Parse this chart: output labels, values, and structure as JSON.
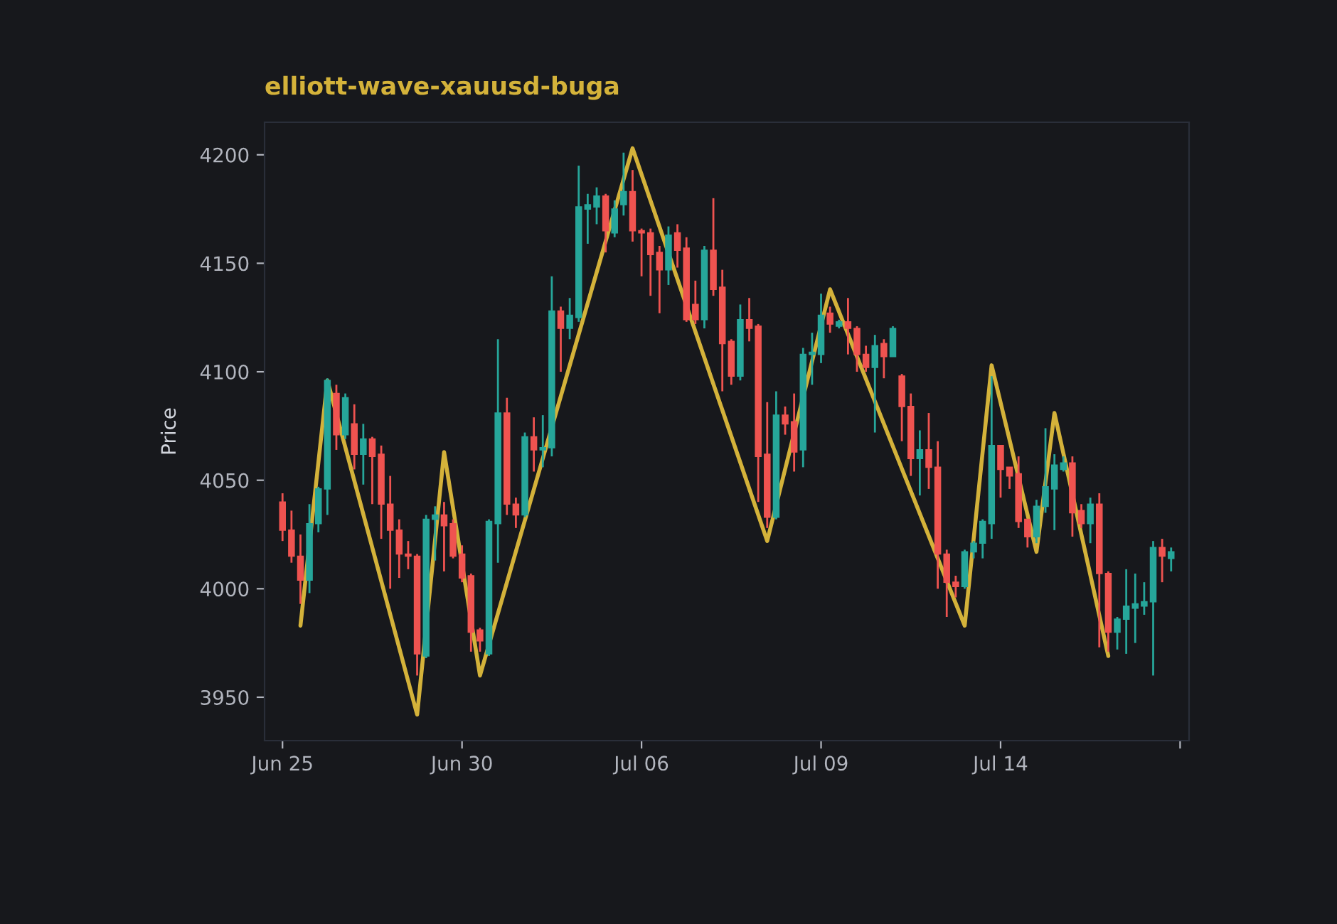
{
  "chart_data": {
    "type": "candlestick",
    "title": "elliott-wave-xauusd-buga",
    "ylabel": "Price",
    "categories": [
      "Jun 25",
      null,
      null,
      null,
      null,
      null,
      null,
      null,
      null,
      null,
      null,
      null,
      null,
      null,
      null,
      null,
      null,
      null,
      null,
      null,
      "Jun 30",
      null,
      null,
      null,
      null,
      null,
      null,
      null,
      null,
      null,
      null,
      null,
      null,
      null,
      null,
      null,
      null,
      null,
      null,
      null,
      "Jul 06",
      null,
      null,
      null,
      null,
      null,
      null,
      null,
      null,
      null,
      null,
      null,
      null,
      null,
      null,
      null,
      null,
      null,
      null,
      null,
      "Jul 09",
      null,
      null,
      null,
      null,
      null,
      null,
      null,
      null,
      null,
      null,
      null,
      null,
      null,
      null,
      null,
      null,
      null,
      null,
      null,
      "Jul 14",
      null,
      null,
      null,
      null,
      null,
      null,
      null,
      null,
      null,
      null,
      null,
      null,
      null,
      null,
      null,
      null,
      null,
      null,
      null
    ],
    "ylim": [
      3930,
      4215
    ],
    "yticks": [
      3950,
      4000,
      4050,
      4100,
      4150,
      4200
    ],
    "series": [
      {
        "ohlc": [
          [
            4040,
            4044,
            4022,
            4027
          ],
          [
            4027,
            4036,
            4012,
            4015
          ],
          [
            4015,
            4025,
            3993,
            4004
          ],
          [
            4004,
            4039,
            3998,
            4030
          ],
          [
            4030,
            4047,
            4026,
            4046
          ],
          [
            4046,
            4097,
            4034,
            4096
          ],
          [
            4090,
            4094,
            4064,
            4071
          ],
          [
            4071,
            4090,
            4069,
            4088
          ],
          [
            4076,
            4085,
            4055,
            4062
          ],
          [
            4062,
            4076,
            4048,
            4069
          ],
          [
            4069,
            4070,
            4039,
            4061
          ],
          [
            4062,
            4066,
            4023,
            4039
          ],
          [
            4039,
            4052,
            4000,
            4027
          ],
          [
            4027,
            4032,
            4005,
            4016
          ],
          [
            4016,
            4022,
            4009,
            4015
          ],
          [
            4015,
            4016,
            3960,
            3970
          ],
          [
            3969,
            4034,
            3968,
            4032
          ],
          [
            4032,
            4038,
            4013,
            4034
          ],
          [
            4034,
            4040,
            4008,
            4029
          ],
          [
            4030,
            4032,
            4014,
            4015
          ],
          [
            4016,
            4020,
            4003,
            4005
          ],
          [
            4006,
            4007,
            3971,
            3980
          ],
          [
            3981,
            3982,
            3971,
            3976
          ],
          [
            3970,
            4032,
            3969,
            4031
          ],
          [
            4030,
            4115,
            4012,
            4081
          ],
          [
            4081,
            4088,
            4034,
            4039
          ],
          [
            4039,
            4042,
            4028,
            4034
          ],
          [
            4034,
            4072,
            4033,
            4070
          ],
          [
            4070,
            4079,
            4054,
            4064
          ],
          [
            4064,
            4080,
            4056,
            4065
          ],
          [
            4065,
            4144,
            4061,
            4128
          ],
          [
            4128,
            4130,
            4100,
            4120
          ],
          [
            4120,
            4134,
            4115,
            4126
          ],
          [
            4125,
            4195,
            4123,
            4176
          ],
          [
            4175,
            4182,
            4159,
            4177
          ],
          [
            4176,
            4185,
            4168,
            4181
          ],
          [
            4181,
            4182,
            4155,
            4165
          ],
          [
            4164,
            4179,
            4162,
            4175
          ],
          [
            4177,
            4201,
            4172,
            4183
          ],
          [
            4183,
            4193,
            4160,
            4165
          ],
          [
            4165,
            4166,
            4144,
            4164
          ],
          [
            4164,
            4166,
            4135,
            4154
          ],
          [
            4155,
            4158,
            4127,
            4147
          ],
          [
            4147,
            4167,
            4140,
            4163
          ],
          [
            4164,
            4168,
            4148,
            4156
          ],
          [
            4157,
            4162,
            4123,
            4124
          ],
          [
            4131,
            4142,
            4122,
            4124
          ],
          [
            4124,
            4158,
            4120,
            4156
          ],
          [
            4156,
            4180,
            4135,
            4138
          ],
          [
            4139,
            4147,
            4091,
            4113
          ],
          [
            4114,
            4115,
            4094,
            4098
          ],
          [
            4098,
            4131,
            4096,
            4124
          ],
          [
            4124,
            4134,
            4114,
            4120
          ],
          [
            4121,
            4122,
            4040,
            4061
          ],
          [
            4062,
            4086,
            4028,
            4033
          ],
          [
            4033,
            4091,
            4032,
            4080
          ],
          [
            4080,
            4084,
            4071,
            4076
          ],
          [
            4077,
            4090,
            4054,
            4063
          ],
          [
            4064,
            4111,
            4056,
            4108
          ],
          [
            4108,
            4118,
            4094,
            4109
          ],
          [
            4108,
            4136,
            4104,
            4126
          ],
          [
            4127,
            4130,
            4118,
            4122
          ],
          [
            4121,
            4124,
            4120,
            4123
          ],
          [
            4123,
            4134,
            4108,
            4120
          ],
          [
            4120,
            4121,
            4100,
            4108
          ],
          [
            4108,
            4112,
            4100,
            4102
          ],
          [
            4102,
            4117,
            4072,
            4112
          ],
          [
            4113,
            4115,
            4097,
            4107
          ],
          [
            4107,
            4121,
            4107,
            4120
          ],
          [
            4098,
            4099,
            4068,
            4084
          ],
          [
            4084,
            4090,
            4052,
            4060
          ],
          [
            4060,
            4073,
            4043,
            4064
          ],
          [
            4064,
            4081,
            4046,
            4056
          ],
          [
            4056,
            4068,
            4000,
            4016
          ],
          [
            4016,
            4018,
            3987,
            4003
          ],
          [
            4003,
            4006,
            3996,
            4001
          ],
          [
            4001,
            4018,
            4000,
            4017
          ],
          [
            4017,
            4022,
            4014,
            4021
          ],
          [
            4021,
            4032,
            4014,
            4031
          ],
          [
            4030,
            4098,
            4023,
            4066
          ],
          [
            4066,
            4066,
            4042,
            4055
          ],
          [
            4056,
            4056,
            4046,
            4052
          ],
          [
            4053,
            4061,
            4028,
            4031
          ],
          [
            4032,
            4032,
            4019,
            4024
          ],
          [
            4024,
            4041,
            4021,
            4038
          ],
          [
            4038,
            4074,
            4035,
            4047
          ],
          [
            4046,
            4062,
            4027,
            4057
          ],
          [
            4055,
            4061,
            4054,
            4058
          ],
          [
            4058,
            4061,
            4024,
            4035
          ],
          [
            4036,
            4039,
            4028,
            4030
          ],
          [
            4030,
            4042,
            4021,
            4039
          ],
          [
            4039,
            4044,
            3973,
            4007
          ],
          [
            4007,
            4008,
            3971,
            3980
          ],
          [
            3980,
            3987,
            3972,
            3986
          ],
          [
            3986,
            4009,
            3970,
            3992
          ],
          [
            3991,
            4007,
            3975,
            3993
          ],
          [
            3992,
            4003,
            3988,
            3994
          ],
          [
            3994,
            4022,
            3960,
            4019
          ],
          [
            4019,
            4023,
            4003,
            4015
          ],
          [
            4014,
            4019,
            4008,
            4017
          ]
        ],
        "colors": [
          "#ef5350",
          "#ef5350",
          "#ef5350",
          "#26a69a",
          "#26a69a",
          "#26a69a",
          "#ef5350",
          "#26a69a",
          "#ef5350",
          "#26a69a",
          "#ef5350",
          "#ef5350",
          "#ef5350",
          "#ef5350",
          "#ef5350",
          "#ef5350",
          "#26a69a",
          "#26a69a",
          "#ef5350",
          "#ef5350",
          "#ef5350",
          "#ef5350",
          "#ef5350",
          "#26a69a",
          "#26a69a",
          "#ef5350",
          "#ef5350",
          "#26a69a",
          "#ef5350",
          "#26a69a",
          "#26a69a",
          "#ef5350",
          "#26a69a",
          "#26a69a",
          "#26a69a",
          "#26a69a",
          "#ef5350",
          "#26a69a",
          "#26a69a",
          "#ef5350",
          "#ef5350",
          "#ef5350",
          "#ef5350",
          "#26a69a",
          "#ef5350",
          "#ef5350",
          "#ef5350",
          "#26a69a",
          "#ef5350",
          "#ef5350",
          "#ef5350",
          "#26a69a",
          "#ef5350",
          "#ef5350",
          "#ef5350",
          "#26a69a",
          "#ef5350",
          "#ef5350",
          "#26a69a",
          "#26a69a",
          "#26a69a",
          "#ef5350",
          "#26a69a",
          "#ef5350",
          "#ef5350",
          "#ef5350",
          "#26a69a",
          "#ef5350",
          "#26a69a",
          "#ef5350",
          "#ef5350",
          "#26a69a",
          "#ef5350",
          "#ef5350",
          "#ef5350",
          "#ef5350",
          "#26a69a",
          "#26a69a",
          "#26a69a",
          "#26a69a",
          "#ef5350",
          "#ef5350",
          "#ef5350",
          "#ef5350",
          "#26a69a",
          "#26a69a",
          "#26a69a",
          "#26a69a",
          "#ef5350",
          "#ef5350",
          "#26a69a",
          "#ef5350",
          "#ef5350",
          "#26a69a",
          "#26a69a",
          "#26a69a",
          "#26a69a",
          "#26a69a",
          "#ef5350",
          "#26a69a"
        ]
      },
      {
        "type": "line",
        "color": "#d4b23a",
        "values": [
          null,
          null,
          3983,
          null,
          null,
          4096,
          null,
          null,
          null,
          null,
          null,
          null,
          null,
          null,
          null,
          3942,
          null,
          null,
          4063,
          null,
          null,
          null,
          3960,
          null,
          null,
          null,
          null,
          null,
          null,
          null,
          null,
          null,
          null,
          null,
          null,
          null,
          null,
          null,
          null,
          4203,
          null,
          null,
          null,
          null,
          null,
          null,
          null,
          null,
          null,
          null,
          null,
          null,
          null,
          null,
          4022,
          null,
          null,
          null,
          null,
          null,
          null,
          4138,
          null,
          null,
          null,
          null,
          null,
          null,
          null,
          null,
          null,
          null,
          null,
          null,
          null,
          null,
          3983,
          null,
          null,
          4103,
          null,
          null,
          null,
          null,
          4017,
          null,
          4081,
          null,
          null,
          null,
          null,
          null,
          3969,
          null,
          null,
          null,
          null,
          null,
          null,
          null
        ]
      }
    ]
  }
}
